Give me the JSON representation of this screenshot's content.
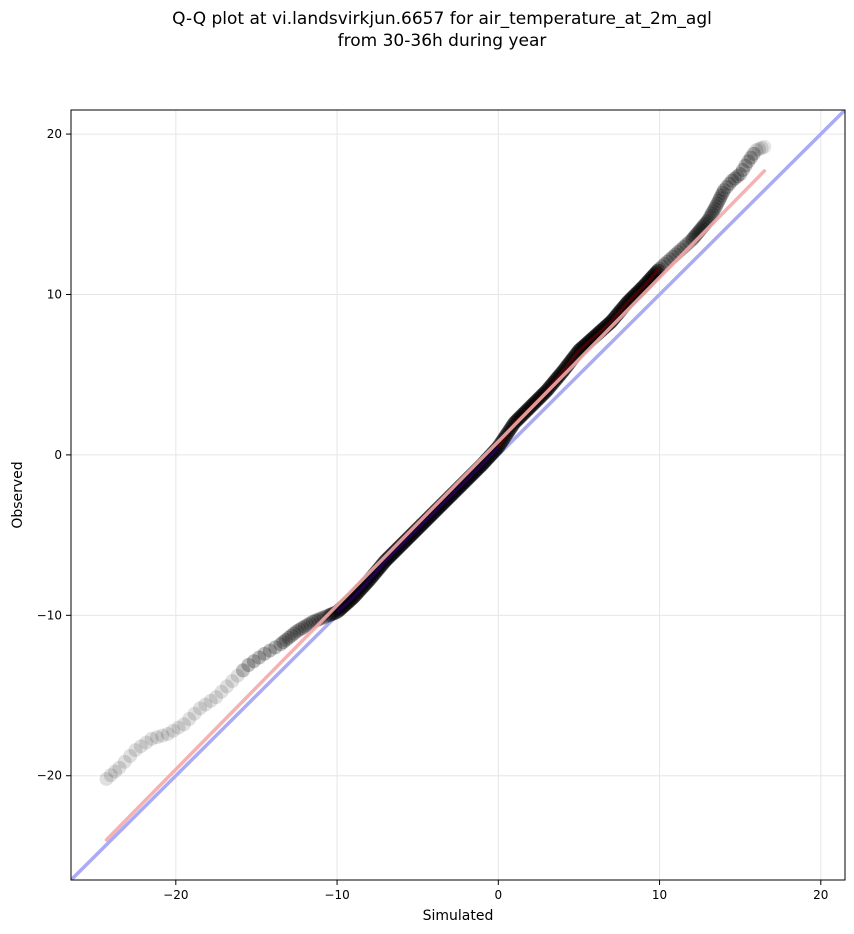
{
  "chart_data": {
    "type": "scatter",
    "title": "Q-Q plot at vi.landsvirkjun.6657 for air_temperature_at_2m_agl",
    "subtitle": "from 30-36h during year",
    "xlabel": "Simulated",
    "ylabel": "Observed",
    "xlim": [
      -26.5,
      21.5
    ],
    "ylim": [
      -26.5,
      21.5
    ],
    "xticks": [
      -20,
      -10,
      0,
      10,
      20
    ],
    "yticks": [
      -20,
      -10,
      0,
      10,
      20
    ],
    "xtick_labels": [
      "−20",
      "−10",
      "0",
      "10",
      "20"
    ],
    "ytick_labels": [
      "−20",
      "−10",
      "0",
      "10",
      "20"
    ],
    "grid": true,
    "colors": {
      "points": "#000000",
      "identity_line": "#aaaaf5",
      "fit_line": "#f5aaaa",
      "center_dark_red": "#7a0000",
      "center_dark_blue": "#00008a"
    },
    "identity_line": {
      "from": [
        -26.5,
        -26.5
      ],
      "to": [
        21.5,
        21.5
      ]
    },
    "fit_line": {
      "from": [
        -24.3,
        -24.0
      ],
      "to": [
        16.5,
        17.7
      ]
    },
    "quantile_curve": {
      "x": [
        -24.3,
        -23.5,
        -22.5,
        -21.5,
        -20.5,
        -19.5,
        -18.5,
        -17.5,
        -16.5,
        -15.5,
        -14.5,
        -13.5,
        -12.5,
        -11.5,
        -10.5,
        -10.0,
        -9.0,
        -8.0,
        -7.0,
        -6.0,
        -5.0,
        -4.0,
        -3.0,
        -2.0,
        -1.0,
        0.0,
        1.0,
        2.0,
        3.0,
        4.0,
        5.0,
        6.0,
        7.0,
        8.0,
        9.0,
        10.0,
        11.0,
        12.0,
        12.5,
        13.0,
        13.5,
        14.0,
        14.5,
        15.0,
        15.5,
        16.0,
        16.5
      ],
      "y": [
        -20.2,
        -19.5,
        -18.4,
        -17.7,
        -17.4,
        -16.8,
        -15.8,
        -15.1,
        -14.1,
        -13.1,
        -12.4,
        -11.8,
        -11.0,
        -10.4,
        -10.0,
        -9.8,
        -8.9,
        -7.8,
        -6.6,
        -5.6,
        -4.6,
        -3.6,
        -2.6,
        -1.6,
        -0.6,
        0.5,
        2.0,
        3.0,
        4.0,
        5.2,
        6.5,
        7.4,
        8.3,
        9.5,
        10.5,
        11.6,
        12.5,
        13.4,
        14.0,
        14.6,
        15.5,
        16.5,
        17.1,
        17.5,
        18.3,
        19.0,
        19.2
      ]
    }
  }
}
